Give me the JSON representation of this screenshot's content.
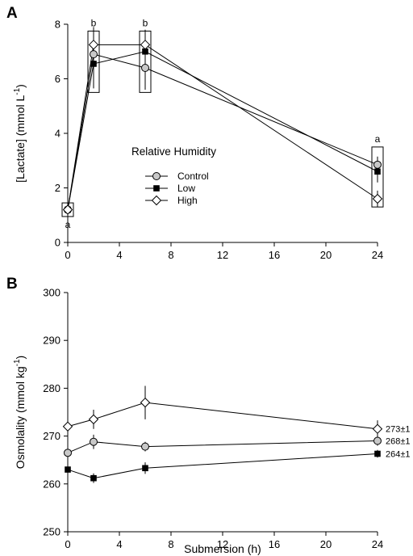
{
  "chart_data": [
    {
      "panel": "A",
      "type": "line",
      "ylabel": "[Lactate] (mmol L",
      "ylabel_exp": "-1",
      "ylabel_close": ")",
      "xlabel": "",
      "xlim": [
        0,
        24
      ],
      "ylim": [
        0,
        8
      ],
      "xticks": [
        "0",
        "4",
        "8",
        "12",
        "16",
        "20",
        "24"
      ],
      "yticks": [
        "0",
        "2",
        "4",
        "6",
        "8"
      ],
      "grid": false,
      "legend": {
        "title": "Relative Humidity",
        "entries": [
          "Control",
          "Low",
          "High"
        ],
        "position": "center-left"
      },
      "x": [
        0,
        2,
        6,
        24
      ],
      "series": [
        {
          "name": "Control",
          "marker": "circle",
          "values": [
            1.2,
            6.9,
            6.4,
            2.85
          ],
          "err": [
            0.1,
            1.0,
            0.8,
            0.3
          ]
        },
        {
          "name": "Low",
          "marker": "square",
          "values": [
            1.2,
            6.55,
            7.0,
            2.6
          ],
          "err": [
            0.1,
            0.9,
            0.8,
            0.4
          ]
        },
        {
          "name": "High",
          "marker": "diamond",
          "values": [
            1.2,
            7.25,
            7.25,
            1.6
          ],
          "err": [
            0.1,
            0.3,
            0.3,
            0.3
          ]
        }
      ],
      "annotations": [
        {
          "x": 0,
          "text": "a",
          "box": [
            0.95,
            1.45
          ]
        },
        {
          "x": 2,
          "text": "b",
          "box": [
            5.5,
            7.75
          ]
        },
        {
          "x": 6,
          "text": "b",
          "box": [
            5.5,
            7.75
          ]
        },
        {
          "x": 24,
          "text": "a",
          "box": [
            1.3,
            3.5
          ]
        }
      ]
    },
    {
      "panel": "B",
      "type": "line",
      "ylabel": "Osmolality (mmol kg",
      "ylabel_exp": "-1",
      "ylabel_close": ")",
      "xlabel": "Submersion (h)",
      "xlim": [
        0,
        24
      ],
      "ylim": [
        250,
        300
      ],
      "xticks": [
        "0",
        "4",
        "8",
        "12",
        "16",
        "20",
        "24"
      ],
      "yticks": [
        "250",
        "260",
        "270",
        "280",
        "290",
        "300"
      ],
      "grid": false,
      "x": [
        0,
        2,
        6,
        24
      ],
      "series": [
        {
          "marker": "circle",
          "values": [
            266.5,
            268.8,
            267.8,
            269.0
          ],
          "err": [
            1.2,
            1.5,
            1.0,
            1.0
          ]
        },
        {
          "marker": "square",
          "values": [
            263.0,
            261.2,
            263.3,
            266.3
          ],
          "err": [
            1.2,
            1.0,
            1.2,
            0.8
          ]
        },
        {
          "marker": "diamond",
          "values": [
            272.0,
            273.5,
            277.0,
            271.5
          ],
          "err": [
            2.0,
            2.0,
            3.5,
            1.8
          ]
        }
      ],
      "end_labels": [
        "273±1",
        "268±1",
        "264±1"
      ]
    }
  ]
}
